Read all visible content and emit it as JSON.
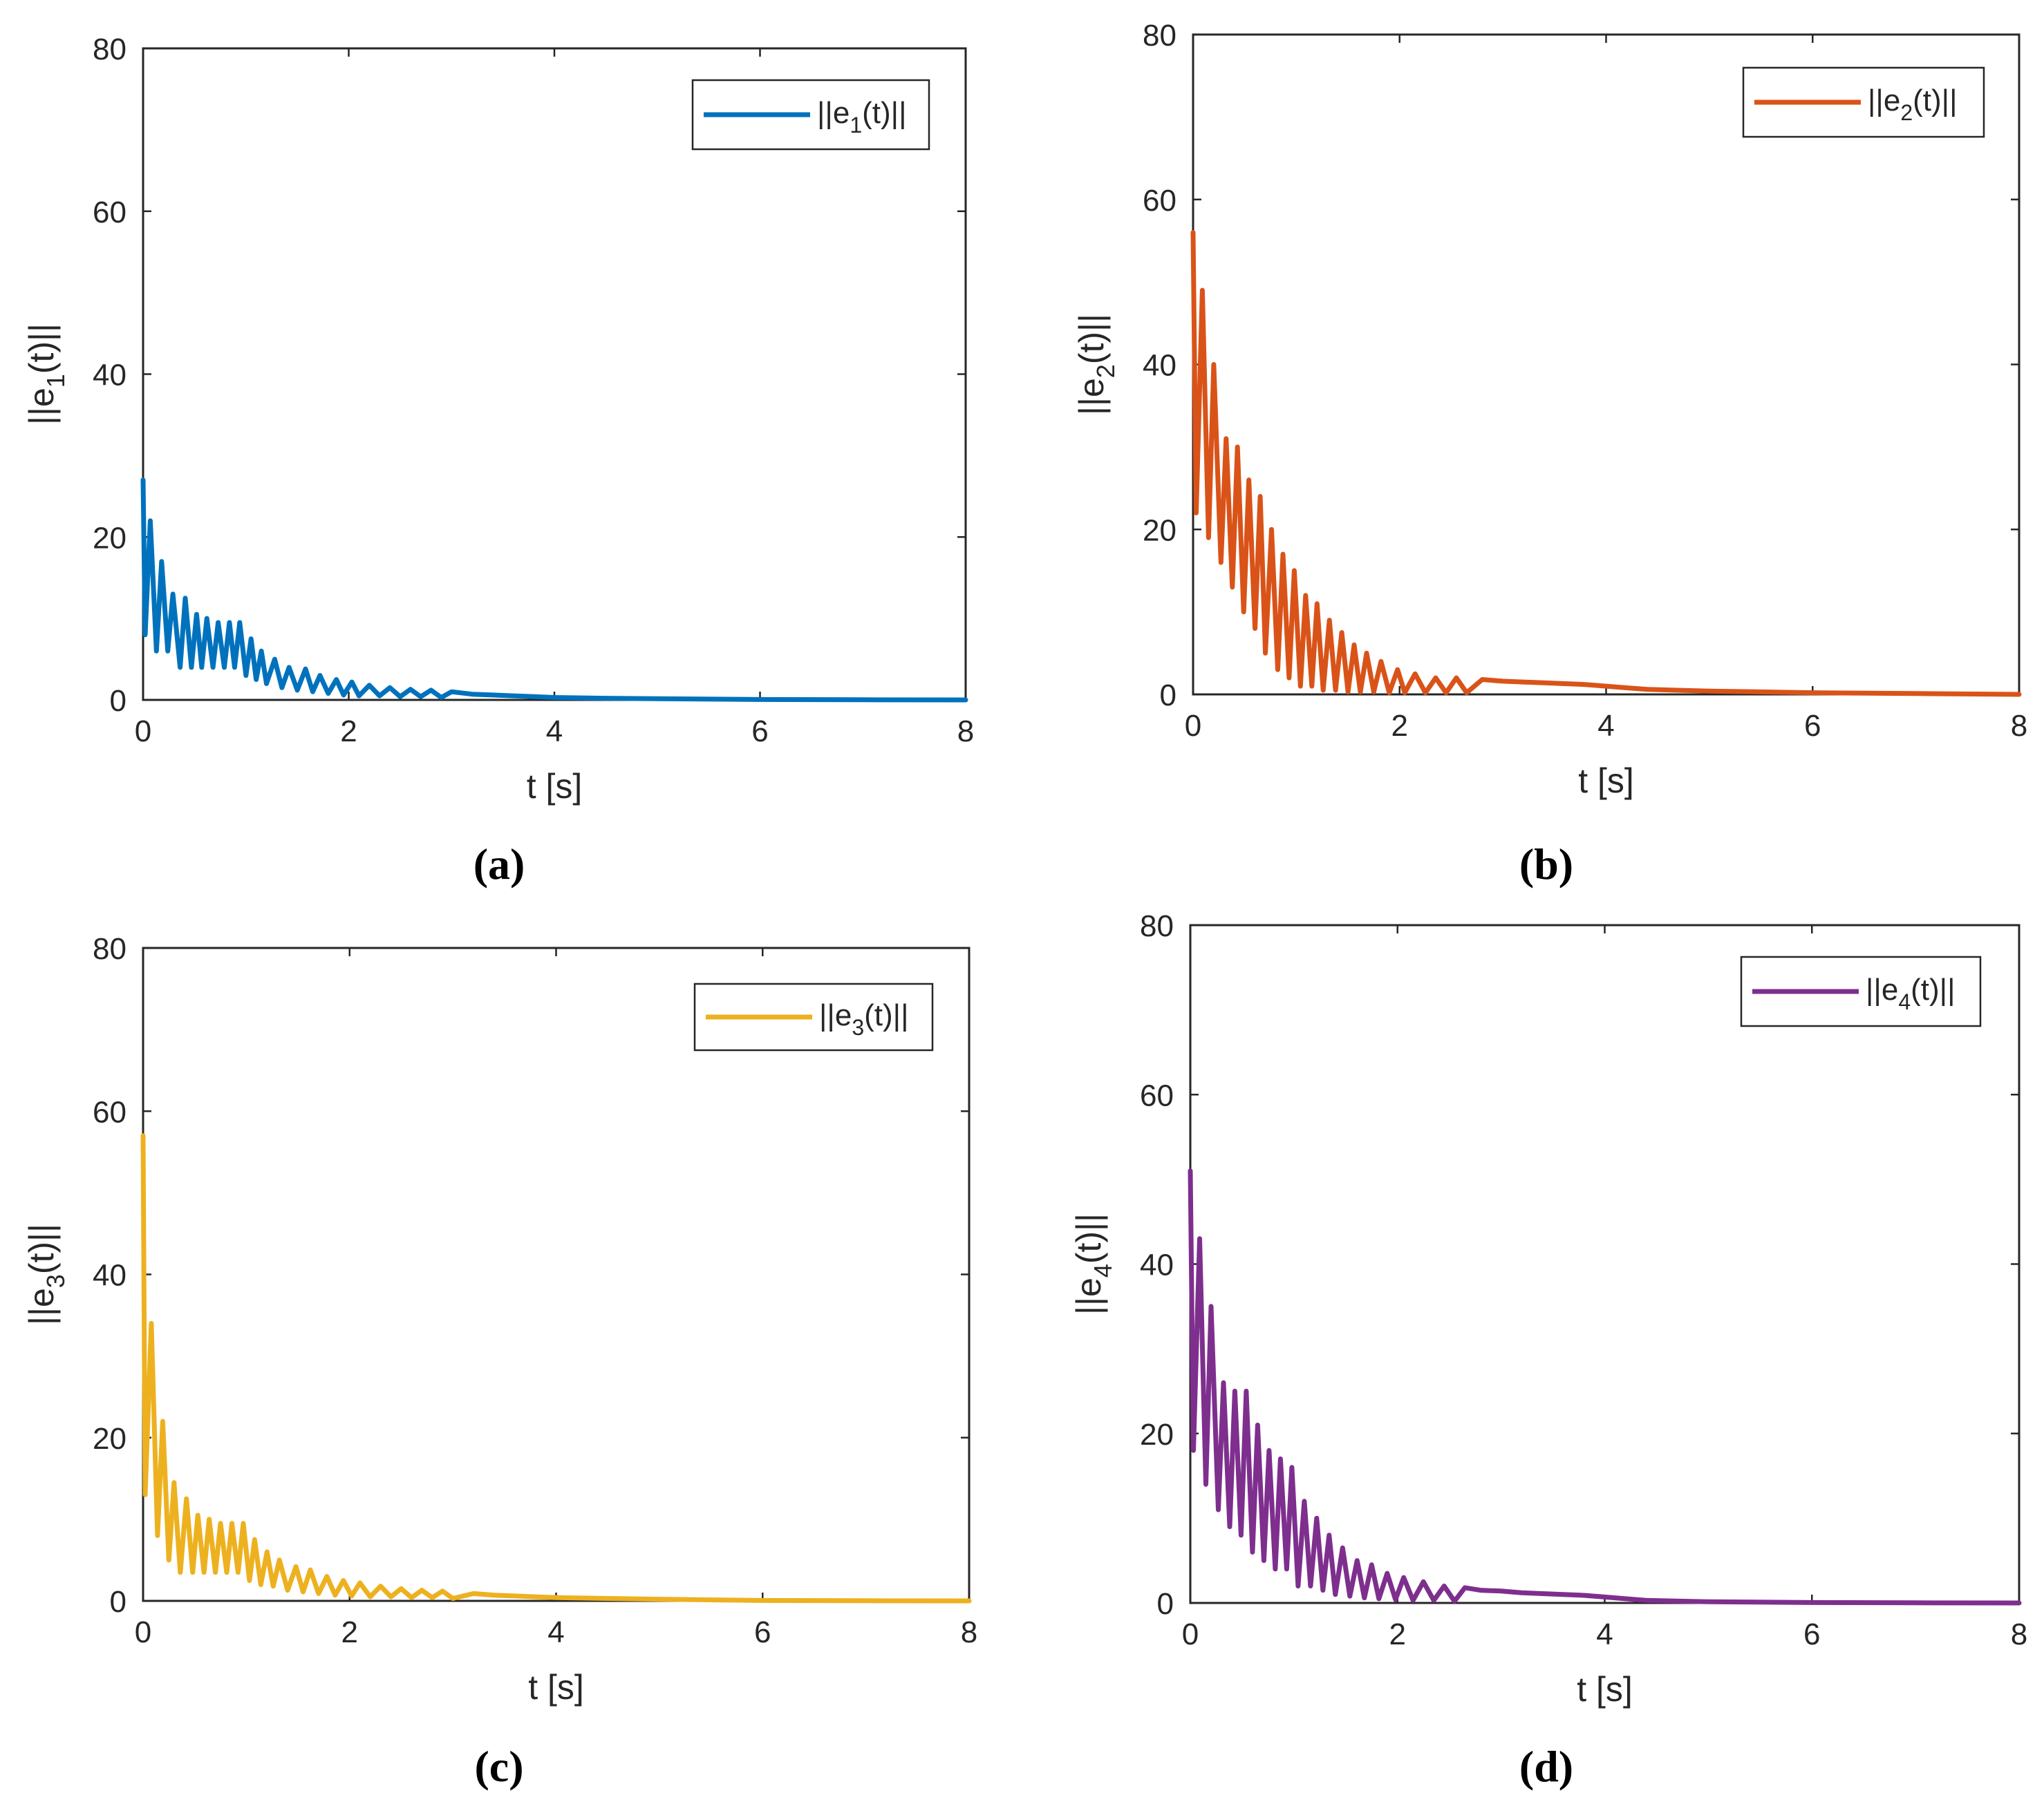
{
  "chart_data": [
    {
      "type": "line",
      "panel_label": "(a)",
      "xlabel": "t [s]",
      "ylabel": {
        "prefix": "||e",
        "sub": "1",
        "suffix": "(t)||"
      },
      "legend": {
        "prefix": "||e",
        "sub": "1",
        "suffix": "(t)||",
        "position": "top-right"
      },
      "color": "#0072BD",
      "xlim": [
        0,
        8
      ],
      "ylim": [
        0,
        80
      ],
      "xticks": [
        0,
        2,
        4,
        6,
        8
      ],
      "yticks": [
        0,
        20,
        40,
        60,
        80
      ],
      "xtick_labels": [
        "0",
        "2",
        "4",
        "6",
        "8"
      ],
      "ytick_labels": [
        "0",
        "20",
        "40",
        "60",
        "80"
      ],
      "series": [
        {
          "name": "||e1(t)||",
          "x": [
            0,
            0.02,
            0.07,
            0.13,
            0.18,
            0.24,
            0.29,
            0.36,
            0.41,
            0.47,
            0.52,
            0.57,
            0.62,
            0.68,
            0.73,
            0.79,
            0.84,
            0.89,
            0.94,
            1.0,
            1.05,
            1.1,
            1.15,
            1.2,
            1.28,
            1.35,
            1.42,
            1.5,
            1.58,
            1.65,
            1.72,
            1.8,
            1.88,
            1.95,
            2.03,
            2.1,
            2.2,
            2.3,
            2.4,
            2.5,
            2.6,
            2.7,
            2.8,
            2.9,
            3.0,
            3.2,
            3.4,
            3.6,
            3.8,
            4.0,
            4.5,
            5.0,
            6.0,
            7.0,
            8.0
          ],
          "values": [
            27,
            8,
            22,
            6,
            17,
            6,
            13,
            4,
            12.5,
            4,
            10.5,
            4,
            10,
            4,
            9.5,
            4,
            9.5,
            4,
            9.5,
            3,
            7.5,
            2.5,
            6,
            2,
            5,
            1.5,
            4,
            1.2,
            3.8,
            1,
            3,
            0.8,
            2.5,
            0.6,
            2.2,
            0.5,
            1.8,
            0.5,
            1.5,
            0.4,
            1.3,
            0.4,
            1.2,
            0.3,
            1,
            0.7,
            0.6,
            0.5,
            0.4,
            0.3,
            0.2,
            0.15,
            0.05,
            0.02,
            0
          ]
        }
      ]
    },
    {
      "type": "line",
      "panel_label": "(b)",
      "xlabel": "t [s]",
      "ylabel": {
        "prefix": "||e",
        "sub": "2",
        "suffix": "(t)||"
      },
      "legend": {
        "prefix": "||e",
        "sub": "2",
        "suffix": "(t)||",
        "position": "top-right"
      },
      "color": "#D95319",
      "xlim": [
        0,
        8
      ],
      "ylim": [
        0,
        80
      ],
      "xticks": [
        0,
        2,
        4,
        6,
        8
      ],
      "yticks": [
        0,
        20,
        40,
        60,
        80
      ],
      "xtick_labels": [
        "0",
        "2",
        "4",
        "6",
        "8"
      ],
      "ytick_labels": [
        "0",
        "20",
        "40",
        "60",
        "80"
      ],
      "series": [
        {
          "name": "||e2(t)||",
          "x": [
            0,
            0.03,
            0.09,
            0.15,
            0.2,
            0.27,
            0.32,
            0.38,
            0.43,
            0.49,
            0.54,
            0.6,
            0.65,
            0.7,
            0.76,
            0.82,
            0.87,
            0.93,
            0.98,
            1.04,
            1.09,
            1.15,
            1.2,
            1.26,
            1.32,
            1.38,
            1.44,
            1.5,
            1.56,
            1.62,
            1.68,
            1.75,
            1.82,
            1.9,
            1.98,
            2.05,
            2.15,
            2.25,
            2.35,
            2.45,
            2.55,
            2.65,
            2.8,
            3.0,
            3.2,
            3.4,
            3.6,
            3.8,
            4.0,
            4.2,
            4.4,
            5.0,
            6.0,
            7.0,
            8.0
          ],
          "values": [
            56,
            22,
            49,
            19,
            40,
            16,
            31,
            13,
            30,
            10,
            26,
            8,
            24,
            5,
            20,
            3,
            17,
            2,
            15,
            1,
            12,
            1,
            11,
            0.5,
            9,
            0.5,
            7.5,
            0.3,
            6,
            0.3,
            5,
            0.3,
            4,
            0.2,
            3,
            0.2,
            2.5,
            0.2,
            2,
            0.2,
            2,
            0.2,
            1.8,
            1.6,
            1.5,
            1.4,
            1.3,
            1.2,
            1,
            0.8,
            0.6,
            0.4,
            0.2,
            0.1,
            0
          ]
        }
      ]
    },
    {
      "type": "line",
      "panel_label": "(c)",
      "xlabel": "t [s]",
      "ylabel": {
        "prefix": "||e",
        "sub": "3",
        "suffix": "(t)||"
      },
      "legend": {
        "prefix": "||e",
        "sub": "3",
        "suffix": "(t)||",
        "position": "top-right"
      },
      "color": "#EDB120",
      "xlim": [
        0,
        8
      ],
      "ylim": [
        0,
        80
      ],
      "xticks": [
        0,
        2,
        4,
        6,
        8
      ],
      "yticks": [
        0,
        20,
        40,
        60,
        80
      ],
      "xtick_labels": [
        "0",
        "2",
        "4",
        "6",
        "8"
      ],
      "ytick_labels": [
        "0",
        "20",
        "40",
        "60",
        "80"
      ],
      "series": [
        {
          "name": "||e3(t)||",
          "x": [
            0,
            0.02,
            0.08,
            0.14,
            0.19,
            0.25,
            0.3,
            0.36,
            0.42,
            0.48,
            0.53,
            0.59,
            0.64,
            0.7,
            0.75,
            0.81,
            0.86,
            0.92,
            0.97,
            1.03,
            1.08,
            1.14,
            1.2,
            1.26,
            1.32,
            1.4,
            1.48,
            1.55,
            1.62,
            1.7,
            1.78,
            1.86,
            1.94,
            2.02,
            2.1,
            2.2,
            2.3,
            2.4,
            2.5,
            2.6,
            2.7,
            2.8,
            2.9,
            3.0,
            3.2,
            3.4,
            3.6,
            3.8,
            4.0,
            4.5,
            5.0,
            6.0,
            7.0,
            8.0
          ],
          "values": [
            57,
            13,
            34,
            8,
            22,
            5,
            14.5,
            3.5,
            12.5,
            3.5,
            10.5,
            3.5,
            10,
            3.5,
            9.5,
            3.5,
            9.5,
            3.5,
            9.5,
            2.5,
            7.5,
            2,
            6,
            1.8,
            5,
            1.3,
            4.2,
            1.1,
            3.8,
            0.9,
            3,
            0.7,
            2.5,
            0.6,
            2.2,
            0.5,
            1.8,
            0.5,
            1.5,
            0.4,
            1.3,
            0.4,
            1.2,
            0.3,
            0.9,
            0.7,
            0.6,
            0.5,
            0.4,
            0.3,
            0.2,
            0.05,
            0.02,
            0
          ]
        }
      ]
    },
    {
      "type": "line",
      "panel_label": "(d)",
      "xlabel": "t [s]",
      "ylabel": {
        "prefix": "||e",
        "sub": "4",
        "suffix": "(t)||"
      },
      "legend": {
        "prefix": "||e",
        "sub": "4",
        "suffix": "(t)||",
        "position": "top-right"
      },
      "color": "#7E2F8E",
      "xlim": [
        0,
        8
      ],
      "ylim": [
        0,
        80
      ],
      "xticks": [
        0,
        2,
        4,
        6,
        8
      ],
      "yticks": [
        0,
        20,
        40,
        60,
        80
      ],
      "xtick_labels": [
        "0",
        "2",
        "4",
        "6",
        "8"
      ],
      "ytick_labels": [
        "0",
        "20",
        "40",
        "60",
        "80"
      ],
      "series": [
        {
          "name": "||e4(t)||",
          "x": [
            0,
            0.03,
            0.09,
            0.15,
            0.2,
            0.27,
            0.32,
            0.38,
            0.43,
            0.49,
            0.54,
            0.6,
            0.65,
            0.71,
            0.76,
            0.82,
            0.87,
            0.93,
            0.98,
            1.04,
            1.1,
            1.16,
            1.22,
            1.28,
            1.34,
            1.4,
            1.47,
            1.54,
            1.61,
            1.68,
            1.75,
            1.82,
            1.9,
            1.98,
            2.06,
            2.15,
            2.25,
            2.35,
            2.45,
            2.55,
            2.65,
            2.8,
            3.0,
            3.2,
            3.4,
            3.6,
            3.8,
            4.0,
            4.2,
            4.4,
            5.0,
            6.0,
            7.0,
            8.0
          ],
          "values": [
            51,
            18,
            43,
            14,
            35,
            11,
            26,
            9,
            25,
            8,
            25,
            6,
            21,
            5,
            18,
            4,
            17,
            4,
            16,
            2,
            12,
            2,
            10,
            1.5,
            8,
            1,
            6.5,
            0.8,
            5,
            0.6,
            4.5,
            0.5,
            3.5,
            0.4,
            3,
            0.3,
            2.5,
            0.3,
            2,
            0.2,
            1.8,
            1.5,
            1.4,
            1.2,
            1.1,
            1,
            0.9,
            0.7,
            0.5,
            0.3,
            0.15,
            0.05,
            0.02,
            0
          ]
        }
      ]
    }
  ]
}
